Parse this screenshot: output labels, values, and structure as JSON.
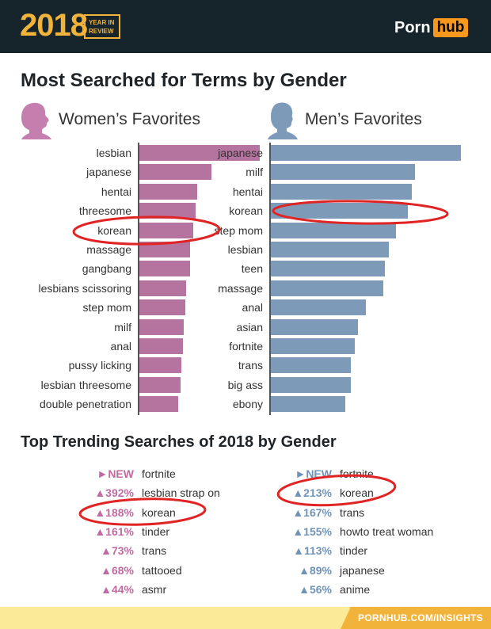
{
  "header": {
    "year": "2018",
    "year_label_line1": "YEAR IN",
    "year_label_line2": "REVIEW",
    "logo_left": "Porn",
    "logo_right": "hub"
  },
  "title": "Most Searched for Terms by Gender",
  "women": {
    "heading": "Women’s Favorites"
  },
  "men": {
    "heading": "Men’s Favorites"
  },
  "trending": {
    "title": "Top Trending Searches of 2018 by Gender",
    "women": [
      {
        "pct": "►NEW",
        "term": "fortnite"
      },
      {
        "pct": "▲392%",
        "term": "lesbian strap on"
      },
      {
        "pct": "▲188%",
        "term": "korean"
      },
      {
        "pct": "▲161%",
        "term": "tinder"
      },
      {
        "pct": "▲73%",
        "term": "trans"
      },
      {
        "pct": "▲68%",
        "term": "tattooed"
      },
      {
        "pct": "▲44%",
        "term": "asmr"
      }
    ],
    "men": [
      {
        "pct": "►NEW",
        "term": "fortnite"
      },
      {
        "pct": "▲213%",
        "term": "korean"
      },
      {
        "pct": "▲167%",
        "term": "trans"
      },
      {
        "pct": "▲155%",
        "term": "howto treat woman"
      },
      {
        "pct": "▲113%",
        "term": "tinder"
      },
      {
        "pct": "▲89%",
        "term": "japanese"
      },
      {
        "pct": "▲56%",
        "term": "anime"
      }
    ]
  },
  "footer": {
    "link": "PORNHUB.COM/INSIGHTS"
  },
  "colors": {
    "women": "#b5739f",
    "women_text": "#c06aa2",
    "men": "#7d9ab8",
    "men_text": "#6f93b8",
    "highlight": "#e02424"
  },
  "chart_data": [
    {
      "type": "bar",
      "orientation": "horizontal",
      "title": "Women’s Favorites",
      "categories": [
        "lesbian",
        "japanese",
        "hentai",
        "threesome",
        "korean",
        "massage",
        "gangbang",
        "lesbians scissoring",
        "step mom",
        "milf",
        "anal",
        "pussy licking",
        "lesbian threesome",
        "double penetration"
      ],
      "values": [
        100,
        60,
        48,
        47,
        45,
        42,
        42,
        39,
        38,
        37,
        36,
        35,
        34,
        32
      ],
      "value_unit": "relative search volume (estimated, no scale shown)",
      "highlighted": "korean"
    },
    {
      "type": "bar",
      "orientation": "horizontal",
      "title": "Men’s Favorites",
      "categories": [
        "japanese",
        "milf",
        "hentai",
        "korean",
        "step mom",
        "lesbian",
        "teen",
        "massage",
        "anal",
        "asian",
        "fortnite",
        "trans",
        "big ass",
        "ebony"
      ],
      "values": [
        100,
        76,
        74,
        72,
        66,
        62,
        60,
        59,
        50,
        46,
        44,
        42,
        42,
        39
      ],
      "value_unit": "relative search volume (estimated, no scale shown)",
      "highlighted": "korean"
    }
  ]
}
